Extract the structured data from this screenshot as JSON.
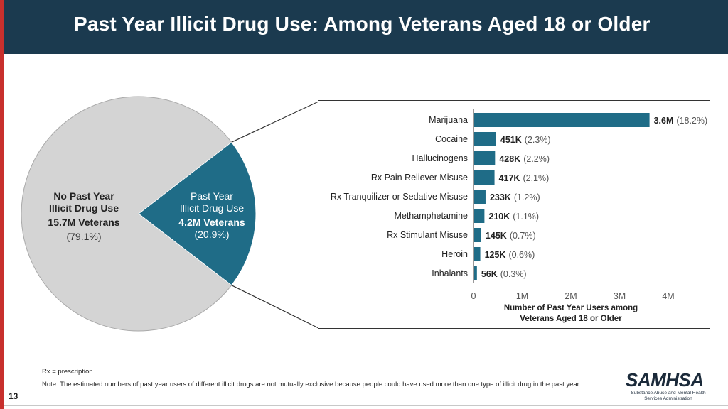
{
  "slide": {
    "title": "Past Year Illicit Drug Use: Among Veterans Aged 18 or Older",
    "page_number": "13"
  },
  "footnotes": {
    "rx_definition": "Rx = prescription.",
    "note": "Note: The estimated numbers of past year users of different illicit drugs are not mutually exclusive because people could have used more than one type of illicit drug in the past year."
  },
  "logo": {
    "name": "SAMHSA",
    "subtitle": "Substance Abuse and Mental Health Services Administration"
  },
  "colors": {
    "header_bg": "#1b3a4f",
    "accent_red": "#c8302d",
    "teal": "#1f6c87",
    "gray": "#d4d4d4"
  },
  "chart_data": [
    {
      "type": "pie",
      "title": "",
      "slices": [
        {
          "name": "Past Year Illicit Drug Use",
          "value_label": "4.2M Veterans",
          "percent": 20.9,
          "percent_label": "(20.9%)",
          "color": "#1f6c87"
        },
        {
          "name": "No Past Year Illicit Drug Use",
          "value_label": "15.7M Veterans",
          "percent": 79.1,
          "percent_label": "(79.1%)",
          "color": "#d4d4d4"
        }
      ]
    },
    {
      "type": "bar",
      "orientation": "horizontal",
      "categories": [
        "Marijuana",
        "Cocaine",
        "Hallucinogens",
        "Rx Pain Reliever Misuse",
        "Rx Tranquilizer or Sedative Misuse",
        "Methamphetamine",
        "Rx Stimulant Misuse",
        "Heroin",
        "Inhalants"
      ],
      "values": [
        3600000,
        451000,
        428000,
        417000,
        233000,
        210000,
        145000,
        125000,
        56000
      ],
      "value_labels": [
        "3.6M",
        "451K",
        "428K",
        "417K",
        "233K",
        "210K",
        "145K",
        "125K",
        "56K"
      ],
      "percent_labels": [
        "(18.2%)",
        "(2.3%)",
        "(2.2%)",
        "(2.1%)",
        "(1.2%)",
        "(1.1%)",
        "(0.7%)",
        "(0.6%)",
        "(0.3%)"
      ],
      "xlim": [
        0,
        4000000
      ],
      "ticks": [
        0,
        1000000,
        2000000,
        3000000,
        4000000
      ],
      "tick_labels": [
        "0",
        "1M",
        "2M",
        "3M",
        "4M"
      ],
      "xlabel": [
        "Number of Past Year Users among",
        "Veterans Aged 18 or Older"
      ],
      "ylabel": "",
      "bar_color": "#1f6c87"
    }
  ]
}
